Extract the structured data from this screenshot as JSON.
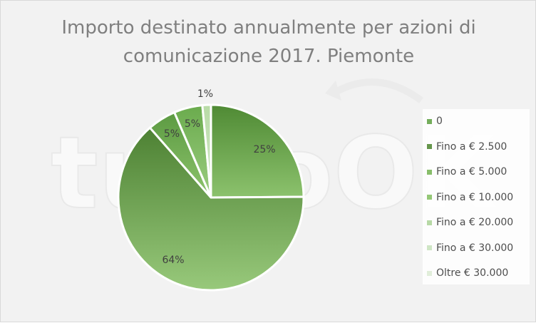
{
  "chart_data": {
    "type": "pie",
    "title_lines": [
      "Importo destinato annualmente per azioni di",
      "comunicazione 2017. Piemonte"
    ],
    "categories": [
      "0",
      "Fino a € 2.500",
      "Fino a € 5.000",
      "Fino a € 10.000",
      "Fino a € 20.000",
      "Fino a € 30.000",
      "Oltre € 30.000"
    ],
    "values": [
      25,
      64,
      5,
      5,
      1,
      0,
      0
    ],
    "labels": [
      "25%",
      "64%",
      "5%",
      "5%",
      "1%",
      "",
      ""
    ],
    "colors": [
      "#6aa84f",
      "#5a8f3e",
      "#7fba5f",
      "#8dc46c",
      "#b2d7a0",
      "#cde6c2",
      "#e0eed9"
    ],
    "legend_position": "right"
  },
  "watermark": "tuttoOK"
}
